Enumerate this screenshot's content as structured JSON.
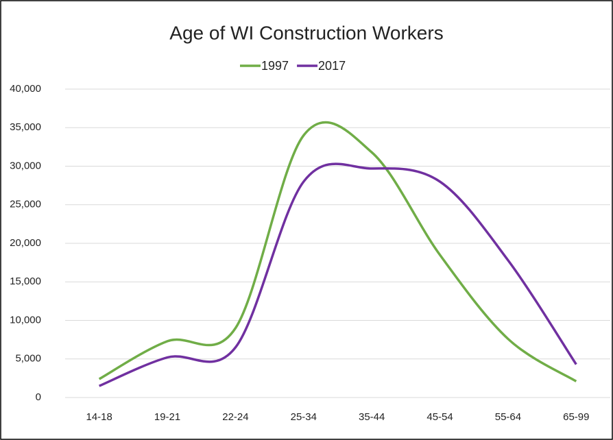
{
  "chart_data": {
    "type": "line",
    "title": "Age of WI Construction Workers",
    "categories": [
      "14-18",
      "19-21",
      "22-24",
      "25-34",
      "35-44",
      "45-54",
      "55-64",
      "65-99"
    ],
    "series": [
      {
        "name": "1997",
        "color": "#70ad47",
        "values": [
          2400,
          7300,
          9000,
          34000,
          31800,
          18500,
          7600,
          2100
        ]
      },
      {
        "name": "2017",
        "color": "#7030a0",
        "values": [
          1500,
          5200,
          6500,
          28000,
          29700,
          28000,
          17800,
          4300
        ]
      }
    ],
    "ylim": [
      0,
      40000
    ],
    "yticks": [
      0,
      {
        "value": 5000,
        "label": "5,000"
      },
      {
        "value": 10000,
        "label": "10,000"
      },
      {
        "value": 15000,
        "label": "15,000"
      },
      {
        "value": 20000,
        "label": "20,000"
      },
      {
        "value": 25000,
        "label": "25,000"
      },
      {
        "value": 30000,
        "label": "30,000"
      },
      {
        "value": 35000,
        "label": "35,000"
      },
      {
        "value": 40000,
        "label": "40,000"
      }
    ],
    "grid": true,
    "smooth": true,
    "legend": "top"
  }
}
